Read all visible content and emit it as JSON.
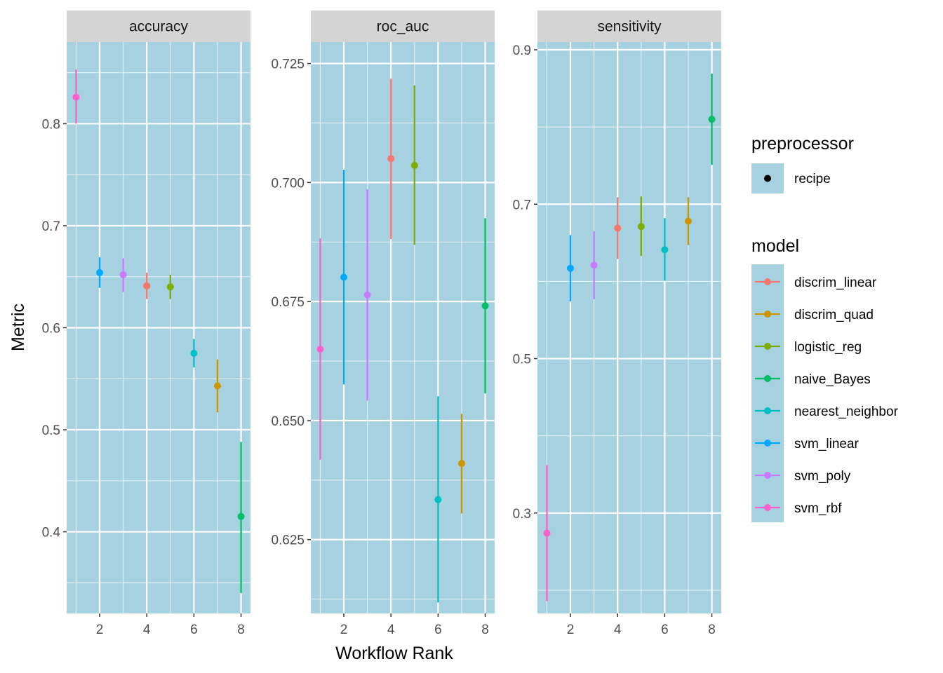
{
  "chart_data": {
    "type": "scatter",
    "xlabel": "Workflow Rank",
    "ylabel": "Metric",
    "panel_background": "#a6d1e0",
    "strip_background": "#d4d4d4",
    "grid_color": "#ffffff",
    "x_ticks": [
      2,
      4,
      6,
      8
    ],
    "x_range": [
      0.6,
      8.4
    ],
    "models": [
      "discrim_linear",
      "discrim_quad",
      "logistic_reg",
      "naive_Bayes",
      "nearest_neighbor",
      "svm_linear",
      "svm_poly",
      "svm_rbf"
    ],
    "colors": {
      "discrim_linear": "#f8766d",
      "discrim_quad": "#cd9600",
      "logistic_reg": "#7cae00",
      "naive_Bayes": "#00be67",
      "nearest_neighbor": "#00bfc4",
      "svm_linear": "#00a9ff",
      "svm_poly": "#c77cff",
      "svm_rbf": "#ff61cc"
    },
    "legend": {
      "placement": "right",
      "preprocessor_title": "preprocessor",
      "preprocessor_items": [
        "recipe"
      ],
      "model_title": "model"
    },
    "panels": [
      {
        "metric": "accuracy",
        "ylim": [
          0.32,
          0.88
        ],
        "y_ticks": [
          0.4,
          0.5,
          0.6,
          0.7,
          0.8
        ],
        "y_tick_labels": [
          "0.4",
          "0.5",
          "0.6",
          "0.7",
          "0.8"
        ],
        "points": [
          {
            "rank": 1,
            "model": "svm_rbf",
            "mean": 0.826,
            "lower": 0.8,
            "upper": 0.853
          },
          {
            "rank": 2,
            "model": "svm_linear",
            "mean": 0.654,
            "lower": 0.639,
            "upper": 0.669
          },
          {
            "rank": 3,
            "model": "svm_poly",
            "mean": 0.652,
            "lower": 0.635,
            "upper": 0.668
          },
          {
            "rank": 4,
            "model": "discrim_linear",
            "mean": 0.641,
            "lower": 0.628,
            "upper": 0.654
          },
          {
            "rank": 5,
            "model": "logistic_reg",
            "mean": 0.64,
            "lower": 0.628,
            "upper": 0.652
          },
          {
            "rank": 6,
            "model": "nearest_neighbor",
            "mean": 0.575,
            "lower": 0.561,
            "upper": 0.589
          },
          {
            "rank": 7,
            "model": "discrim_quad",
            "mean": 0.543,
            "lower": 0.517,
            "upper": 0.569
          },
          {
            "rank": 8,
            "model": "naive_Bayes",
            "mean": 0.415,
            "lower": 0.34,
            "upper": 0.488
          }
        ]
      },
      {
        "metric": "roc_auc",
        "ylim": [
          0.6095,
          0.7295
        ],
        "y_ticks": [
          0.625,
          0.65,
          0.675,
          0.7,
          0.725
        ],
        "y_tick_labels": [
          "0.625",
          "0.650",
          "0.675",
          "0.700",
          "0.725"
        ],
        "points": [
          {
            "rank": 1,
            "model": "svm_rbf",
            "mean": 0.665,
            "lower": 0.6418,
            "upper": 0.6883
          },
          {
            "rank": 2,
            "model": "svm_linear",
            "mean": 0.6801,
            "lower": 0.6576,
            "upper": 0.7027
          },
          {
            "rank": 3,
            "model": "svm_poly",
            "mean": 0.6764,
            "lower": 0.6542,
            "upper": 0.6986
          },
          {
            "rank": 4,
            "model": "discrim_linear",
            "mean": 0.705,
            "lower": 0.6881,
            "upper": 0.7218
          },
          {
            "rank": 5,
            "model": "logistic_reg",
            "mean": 0.7036,
            "lower": 0.6869,
            "upper": 0.7204
          },
          {
            "rank": 6,
            "model": "nearest_neighbor",
            "mean": 0.6334,
            "lower": 0.6118,
            "upper": 0.6551
          },
          {
            "rank": 7,
            "model": "discrim_quad",
            "mean": 0.641,
            "lower": 0.6305,
            "upper": 0.6514
          },
          {
            "rank": 8,
            "model": "naive_Bayes",
            "mean": 0.6741,
            "lower": 0.6557,
            "upper": 0.6925
          }
        ]
      },
      {
        "metric": "sensitivity",
        "ylim": [
          0.17,
          0.91
        ],
        "y_ticks": [
          0.3,
          0.5,
          0.7,
          0.9
        ],
        "y_tick_labels": [
          "0.3",
          "0.5",
          "0.7",
          "0.9"
        ],
        "points": [
          {
            "rank": 1,
            "model": "svm_rbf",
            "mean": 0.274,
            "lower": 0.186,
            "upper": 0.362
          },
          {
            "rank": 2,
            "model": "svm_linear",
            "mean": 0.617,
            "lower": 0.574,
            "upper": 0.66
          },
          {
            "rank": 3,
            "model": "svm_poly",
            "mean": 0.621,
            "lower": 0.577,
            "upper": 0.665
          },
          {
            "rank": 4,
            "model": "discrim_linear",
            "mean": 0.669,
            "lower": 0.629,
            "upper": 0.709
          },
          {
            "rank": 5,
            "model": "logistic_reg",
            "mean": 0.671,
            "lower": 0.633,
            "upper": 0.71
          },
          {
            "rank": 6,
            "model": "nearest_neighbor",
            "mean": 0.641,
            "lower": 0.601,
            "upper": 0.682
          },
          {
            "rank": 7,
            "model": "discrim_quad",
            "mean": 0.678,
            "lower": 0.647,
            "upper": 0.709
          },
          {
            "rank": 8,
            "model": "naive_Bayes",
            "mean": 0.81,
            "lower": 0.751,
            "upper": 0.869
          }
        ]
      }
    ]
  }
}
